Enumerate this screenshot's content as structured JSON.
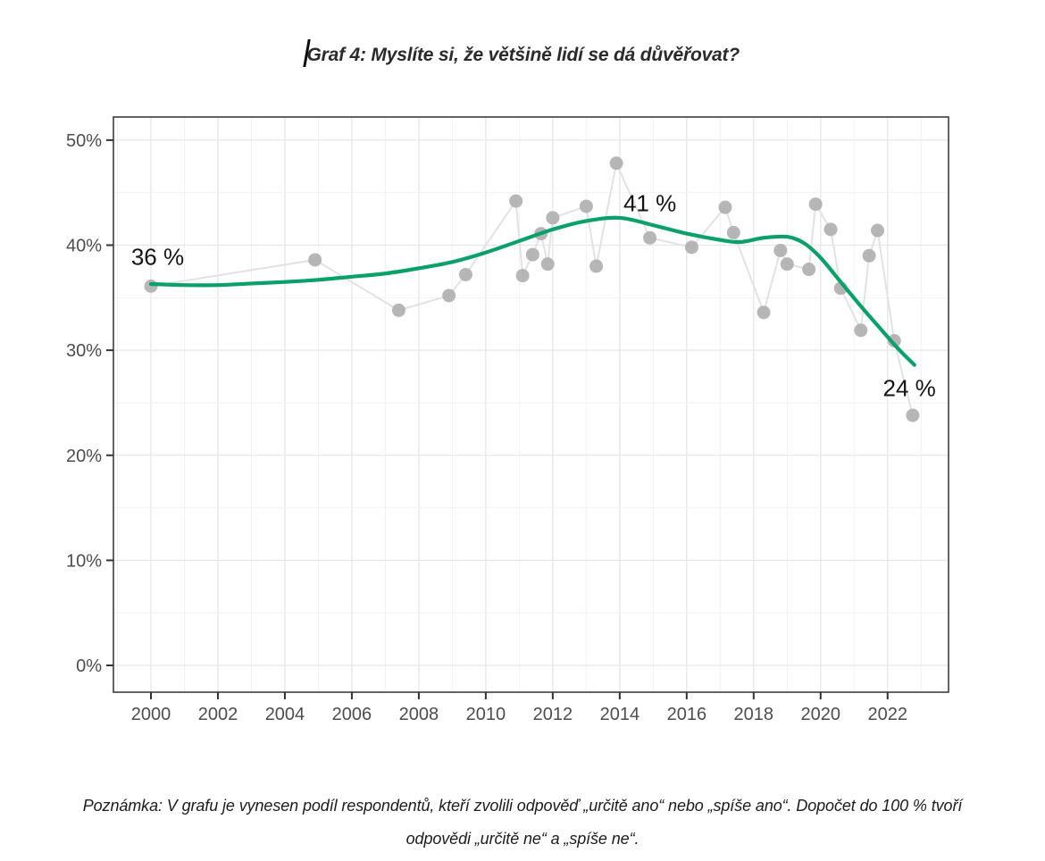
{
  "title": {
    "text": "Graf 4: Myslíte si, že většině lidí se dá důvěřovat?"
  },
  "note": {
    "line1": "Poznámka: V grafu je vynesen podíl respondentů, kteří zvolili odpověď „určitě ano“ nebo „spíše ano“. Dopočet do 100 % tvoří",
    "line2": "odpovědi „určitě ne“ a „spíše ne“."
  },
  "chart_data": {
    "type": "scatter",
    "title": "Graf 4: Myslíte si, že většině lidí se dá důvěřovat?",
    "xlabel": "",
    "ylabel": "",
    "x_axis": {
      "range": [
        1998.88,
        2023.82
      ],
      "ticks": [
        2000,
        2002,
        2004,
        2006,
        2008,
        2010,
        2012,
        2014,
        2016,
        2018,
        2020,
        2022
      ],
      "minor_grid_every": 1
    },
    "y_axis": {
      "range": [
        -2.55,
        52.2
      ],
      "tick_values": [
        0,
        10,
        20,
        30,
        40,
        50
      ],
      "tick_labels": [
        "0%",
        "10%",
        "20%",
        "30%",
        "40%",
        "50%"
      ],
      "minor_grid_values": [
        5,
        15,
        25,
        35,
        45
      ]
    },
    "grid": "on",
    "legend": "none",
    "series": [
      {
        "name": "survey-results",
        "type": "scatter-with-connecting-line",
        "points": [
          [
            2000.0,
            36.1
          ],
          [
            2004.9,
            38.6
          ],
          [
            2007.4,
            33.8
          ],
          [
            2008.9,
            35.2
          ],
          [
            2009.4,
            37.2
          ],
          [
            2010.9,
            44.2
          ],
          [
            2011.1,
            37.1
          ],
          [
            2011.4,
            39.1
          ],
          [
            2011.65,
            41.1
          ],
          [
            2011.85,
            38.2
          ],
          [
            2012.0,
            42.6
          ],
          [
            2013.0,
            43.7
          ],
          [
            2013.3,
            38.0
          ],
          [
            2013.9,
            47.8
          ],
          [
            2014.9,
            40.7
          ],
          [
            2016.15,
            39.8
          ],
          [
            2017.15,
            43.6
          ],
          [
            2017.4,
            41.2
          ],
          [
            2018.3,
            33.6
          ],
          [
            2018.8,
            39.5
          ],
          [
            2019.0,
            38.2
          ],
          [
            2019.65,
            37.7
          ],
          [
            2019.85,
            43.9
          ],
          [
            2020.3,
            41.5
          ],
          [
            2020.6,
            35.9
          ],
          [
            2021.2,
            31.9
          ],
          [
            2021.45,
            39.0
          ],
          [
            2021.7,
            41.4
          ],
          [
            2022.2,
            30.9
          ],
          [
            2022.75,
            23.8
          ]
        ]
      },
      {
        "name": "smoothed-trend",
        "type": "smooth-line",
        "points": [
          [
            2000,
            36.3
          ],
          [
            2001,
            36.2
          ],
          [
            2002,
            36.2
          ],
          [
            2003,
            36.35
          ],
          [
            2004,
            36.5
          ],
          [
            2005,
            36.7
          ],
          [
            2006,
            37.0
          ],
          [
            2007,
            37.3
          ],
          [
            2008,
            37.8
          ],
          [
            2009,
            38.4
          ],
          [
            2010,
            39.3
          ],
          [
            2011,
            40.4
          ],
          [
            2012,
            41.5
          ],
          [
            2013,
            42.3
          ],
          [
            2014,
            42.6
          ],
          [
            2015,
            41.9
          ],
          [
            2016,
            41.1
          ],
          [
            2017,
            40.5
          ],
          [
            2017.6,
            40.3
          ],
          [
            2018.3,
            40.7
          ],
          [
            2019.0,
            40.8
          ],
          [
            2019.5,
            40.2
          ],
          [
            2020,
            38.8
          ],
          [
            2020.6,
            36.5
          ],
          [
            2021.2,
            34.2
          ],
          [
            2021.8,
            32.0
          ],
          [
            2022.3,
            30.2
          ],
          [
            2022.8,
            28.6
          ]
        ]
      }
    ],
    "annotations": [
      {
        "text": "36 %",
        "x": 2000.2,
        "y": 38.9
      },
      {
        "text": "41 %",
        "x": 2014.9,
        "y": 44.0
      },
      {
        "text": "24 %",
        "x": 2022.65,
        "y": 26.4
      }
    ],
    "colors": {
      "trend_line": "#0aa06a",
      "point_fill": "#b0b0b0",
      "connecting_line": "#e2e2e2",
      "grid_major": "#e6e6e6",
      "grid_minor": "#f2f2f2",
      "panel_border": "#3d3d3d",
      "tick_mark": "#333333",
      "axis_text": "#4d4d4d",
      "annotation_text": "#141414"
    }
  }
}
